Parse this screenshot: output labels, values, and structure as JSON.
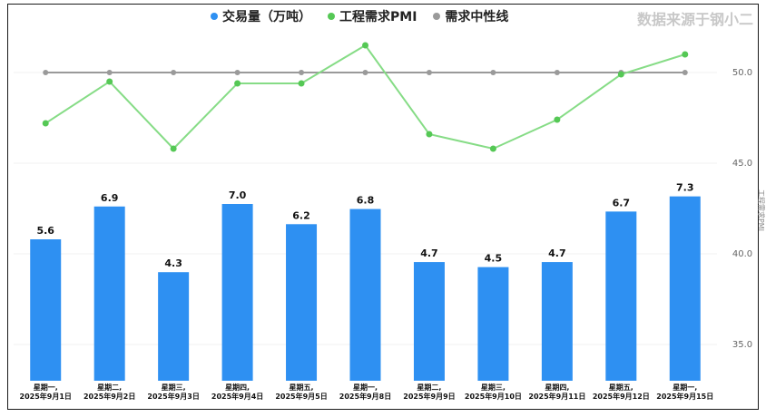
{
  "source_label": "数据来源于钢小二",
  "colors": {
    "bar": "#2e90f2",
    "pmi_line": "#86dc86",
    "pmi_point": "#55c855",
    "neutral": "#9a9a9a"
  },
  "chart_data": {
    "type": "bar",
    "categories": [
      [
        "星期一,",
        "2025年9月1日"
      ],
      [
        "星期二,",
        "2025年9月2日"
      ],
      [
        "星期三,",
        "2025年9月3日"
      ],
      [
        "星期四,",
        "2025年9月4日"
      ],
      [
        "星期五,",
        "2025年9月5日"
      ],
      [
        "星期一,",
        "2025年9月8日"
      ],
      [
        "星期二,",
        "2025年9月9日"
      ],
      [
        "星期三,",
        "2025年9月10日"
      ],
      [
        "星期四,",
        "2025年9月11日"
      ],
      [
        "星期五,",
        "2025年9月12日"
      ],
      [
        "星期一,",
        "2025年9月15日"
      ]
    ],
    "series": [
      {
        "name": "交易量（万吨）",
        "type": "bar",
        "values": [
          5.6,
          6.9,
          4.3,
          7.0,
          6.2,
          6.8,
          4.7,
          4.5,
          4.7,
          6.7,
          7.3
        ]
      },
      {
        "name": "工程需求PMI",
        "type": "line",
        "values": [
          47.2,
          49.5,
          45.8,
          49.4,
          49.4,
          51.5,
          46.6,
          45.8,
          47.4,
          49.9,
          51.0
        ]
      },
      {
        "name": "需求中性线",
        "type": "line",
        "values": [
          50,
          50,
          50,
          50,
          50,
          50,
          50,
          50,
          50,
          50,
          50
        ]
      }
    ],
    "y2_ticks": [
      "35.0",
      "40.0",
      "45.0",
      "50.0"
    ],
    "y2_label": "工程需求PMI",
    "y2lim": [
      33,
      52.5
    ],
    "y_bar_lim": [
      0,
      14
    ],
    "legend": "top"
  }
}
